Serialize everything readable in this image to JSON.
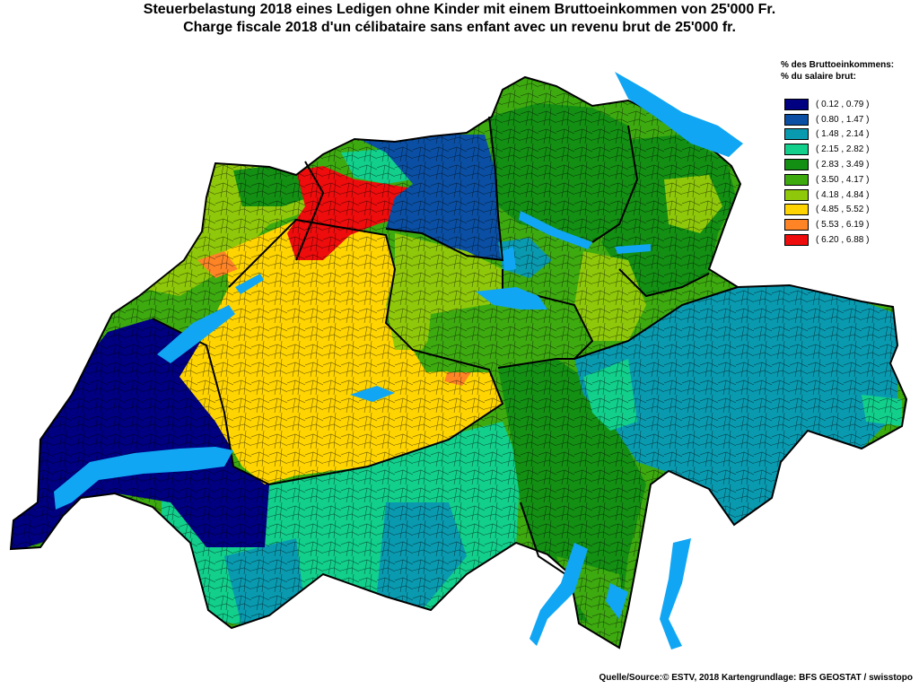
{
  "title": {
    "line1": "Steuerbelastung 2018 eines Ledigen ohne Kinder mit einem Bruttoeinkommen von 25'000 Fr.",
    "line2": "Charge fiscale 2018 d'un célibataire sans enfant avec un revenu brut de 25'000 fr."
  },
  "legend": {
    "heading1": "% des Bruttoeinkommens:",
    "heading2": "% du salaire brut:",
    "classes": [
      {
        "label": "( 0.12 , 0.79 )",
        "color": "#000080"
      },
      {
        "label": "( 0.80 , 1.47 )",
        "color": "#0a4fa3"
      },
      {
        "label": "( 1.48 , 2.14 )",
        "color": "#0a9ab0"
      },
      {
        "label": "( 2.15 , 2.82 )",
        "color": "#12cf8c"
      },
      {
        "label": "( 2.83 , 3.49 )",
        "color": "#138f13"
      },
      {
        "label": "( 3.50 , 4.17 )",
        "color": "#3daa10"
      },
      {
        "label": "( 4.18 , 4.84 )",
        "color": "#8fc80a"
      },
      {
        "label": "( 4.85 , 5.52 )",
        "color": "#ffd400"
      },
      {
        "label": "( 5.53 , 6.19 )",
        "color": "#ff8426"
      },
      {
        "label": "( 6.20 , 6.88 )",
        "color": "#ee0c0c"
      }
    ]
  },
  "lake_color": "#10a6f4",
  "source": "Quelle/Source:© ESTV, 2018 Kartengrundlage: BFS GEOSTAT / swisstopo"
}
